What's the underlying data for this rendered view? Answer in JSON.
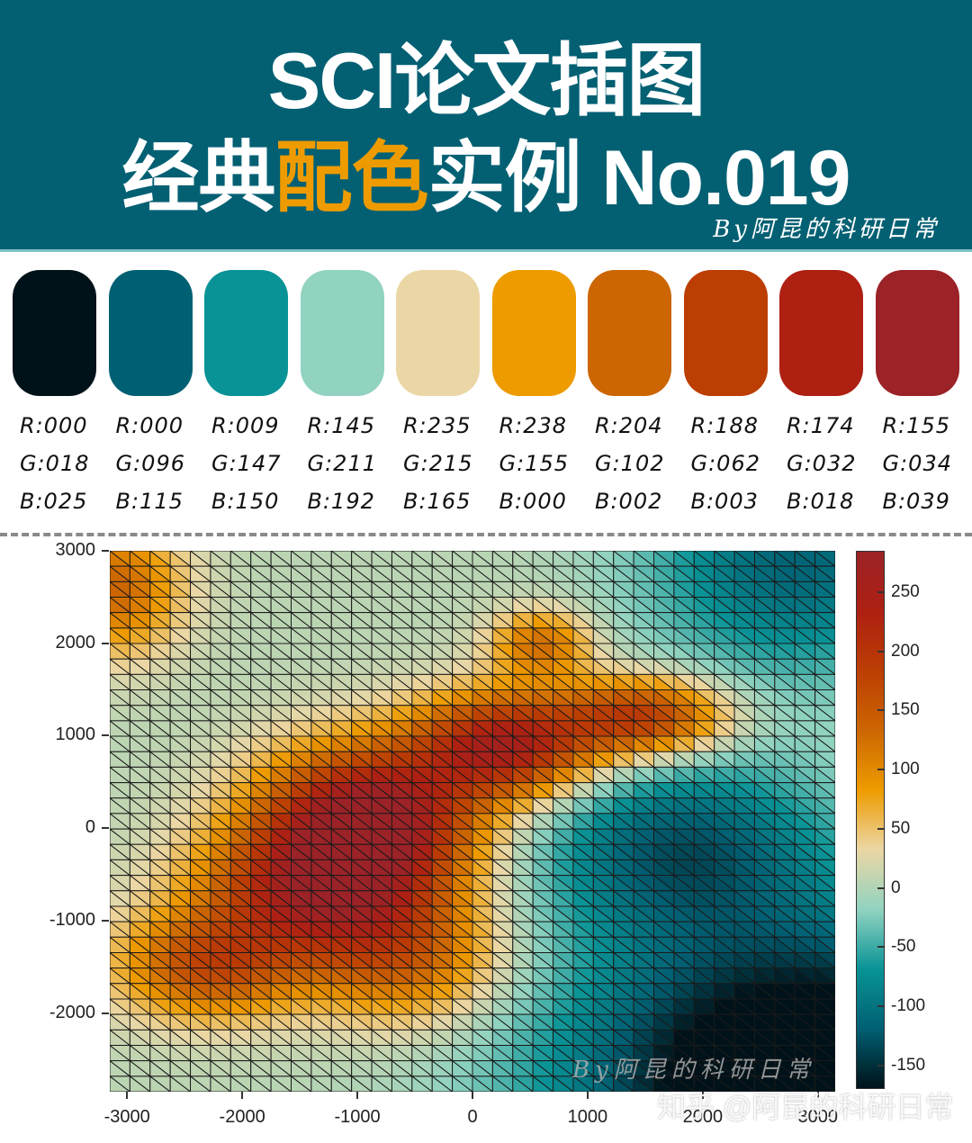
{
  "header": {
    "title_line1": "SCI论文插图",
    "title_line2_a": "经典",
    "title_line2_highlight": "配色",
    "title_line2_b": "实例 No.019",
    "byline": "By阿昆的科研日常",
    "background": "#036073",
    "highlight_color": "#EE9B00"
  },
  "palette": [
    {
      "hex": "#001219",
      "r": "R:000",
      "g": "G:018",
      "b": "B:025"
    },
    {
      "hex": "#006073",
      "r": "R:000",
      "g": "G:096",
      "b": "B:115"
    },
    {
      "hex": "#099396",
      "r": "R:009",
      "g": "G:147",
      "b": "B:150"
    },
    {
      "hex": "#91D3C0",
      "r": "R:145",
      "g": "G:211",
      "b": "B:192"
    },
    {
      "hex": "#EBD7A5",
      "r": "R:235",
      "g": "G:215",
      "b": "B:165"
    },
    {
      "hex": "#EE9B00",
      "r": "R:238",
      "g": "G:155",
      "b": "B:000"
    },
    {
      "hex": "#CC6602",
      "r": "R:204",
      "g": "G:102",
      "b": "B:002"
    },
    {
      "hex": "#BC3E03",
      "r": "R:188",
      "g": "G:062",
      "b": "B:003"
    },
    {
      "hex": "#AE2012",
      "r": "R:174",
      "g": "G:032",
      "b": "B:018"
    },
    {
      "hex": "#9B2227",
      "r": "R:155",
      "g": "G:034",
      "b": "B:039"
    }
  ],
  "chart_data": {
    "type": "heatmap",
    "subtype": "triangulated surface (trisurf), view from top",
    "title": "",
    "xlabel": "",
    "ylabel": "",
    "xlim": [
      -3150,
      3150
    ],
    "ylim": [
      -2850,
      3000
    ],
    "x_ticks": [
      "-3000",
      "-2000",
      "-1000",
      "0",
      "1000",
      "2000",
      "3000"
    ],
    "y_ticks": [
      "3000",
      "2000",
      "1000",
      "0",
      "-1000",
      "-2000"
    ],
    "grid": {
      "cols": 36,
      "rows": 35,
      "triangulation": "diagonal top-left to bottom-right"
    },
    "colorbar": {
      "range": [
        -170,
        285
      ],
      "ticks": [
        "250",
        "200",
        "150",
        "100",
        "50",
        "0",
        "-50",
        "-100",
        "-150"
      ],
      "colormap": [
        "#001219",
        "#006073",
        "#099396",
        "#91D3C0",
        "#EBD7A5",
        "#EE9B00",
        "#CC6602",
        "#BC3E03",
        "#AE2012",
        "#9B2227"
      ]
    },
    "surface_description": "Diagonal ridge of high values (~150-280) running from lower-left (-2500,-1600) to upper-right (2200,1300); peak ~280 near (-800,200); secondary lobe near (400,1000); low values (~-170) in lower-right corner; mild positive values along left edge and top-left corner",
    "features": [
      {
        "x": -900,
        "y": 100,
        "amp": 290,
        "sx": 650,
        "sy": 550
      },
      {
        "x": -1400,
        "y": -700,
        "amp": 200,
        "sx": 700,
        "sy": 500
      },
      {
        "x": 300,
        "y": 900,
        "amp": 240,
        "sx": 550,
        "sy": 400
      },
      {
        "x": 1500,
        "y": 1200,
        "amp": 190,
        "sx": 500,
        "sy": 300
      },
      {
        "x": -2300,
        "y": -1500,
        "amp": 150,
        "sx": 550,
        "sy": 400
      },
      {
        "x": -600,
        "y": -1400,
        "amp": 130,
        "sx": 600,
        "sy": 500
      },
      {
        "x": 600,
        "y": 2000,
        "amp": 120,
        "sx": 300,
        "sy": 250
      },
      {
        "x": -3100,
        "y": 2600,
        "amp": 130,
        "sx": 400,
        "sy": 500
      },
      {
        "x": 3000,
        "y": -2800,
        "amp": -260,
        "sx": 1500,
        "sy": 1200
      },
      {
        "x": 2800,
        "y": 2900,
        "amp": -120,
        "sx": 900,
        "sy": 900
      },
      {
        "x": 1800,
        "y": -200,
        "amp": -120,
        "sx": 900,
        "sy": 700
      }
    ],
    "baseline": 5
  },
  "watermarks": {
    "plot": "By阿昆的科研日常",
    "site": "知乎 @阿昆的科研日常"
  }
}
